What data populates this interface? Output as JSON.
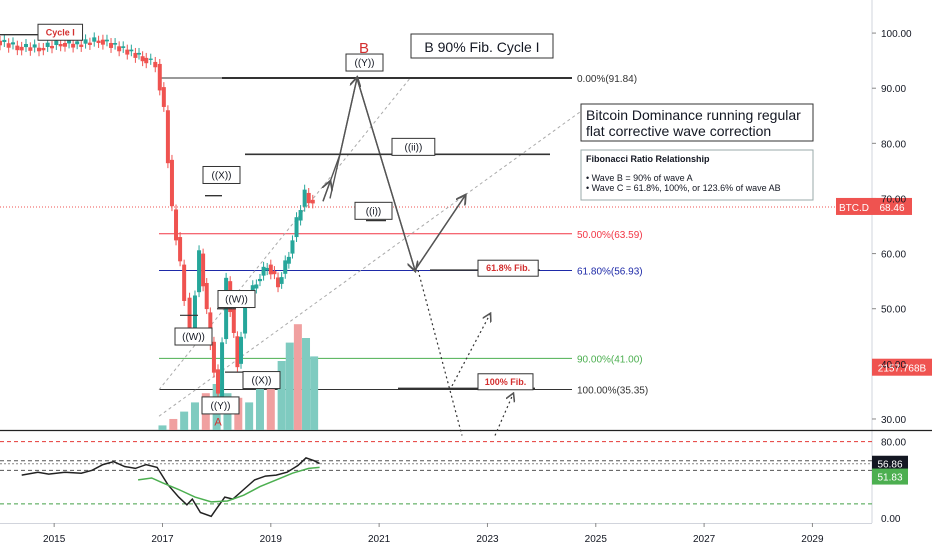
{
  "chart_data": [
    {
      "type": "candlestick",
      "ylim": [
        28,
        106
      ],
      "y_ticks": [
        "100.00",
        "90.00",
        "80.00",
        "70.00",
        "60.00",
        "50.00",
        "40.00",
        "30.00"
      ],
      "x_ticks": [
        "2015",
        "2017",
        "2019",
        "2021",
        "2023",
        "2025",
        "2027",
        "2029"
      ],
      "xlim": [
        2014.0,
        2030.1
      ],
      "grid": false,
      "price_tag": {
        "label": "BTC.D",
        "value": "68.46",
        "color": "#ef5350"
      },
      "volume_tag": {
        "value": "2157.768B",
        "color": "#ef5350"
      },
      "fib_levels": [
        {
          "label": "0.00%(91.84)",
          "value": 91.84,
          "color": "#333333"
        },
        {
          "label": "50.00%(63.59)",
          "value": 63.59,
          "color": "#f23645"
        },
        {
          "label": "61.80%(56.93)",
          "value": 56.93,
          "color": "#1e2aa8"
        },
        {
          "label": "90.00%(41.00)",
          "value": 41.0,
          "color": "#4caf50"
        },
        {
          "label": "100.00%(35.35)",
          "value": 35.35,
          "color": "#333333"
        }
      ],
      "price_path": [
        [
          2014.0,
          98.6
        ],
        [
          2014.4,
          97.5
        ],
        [
          2014.8,
          97.3
        ],
        [
          2015.2,
          98.2
        ],
        [
          2015.5,
          97.9
        ],
        [
          2015.9,
          98.8
        ],
        [
          2016.2,
          97.6
        ],
        [
          2016.5,
          96.4
        ],
        [
          2016.7,
          95.5
        ],
        [
          2016.95,
          94.4
        ],
        [
          2017.1,
          86.0
        ],
        [
          2017.25,
          68.0
        ],
        [
          2017.4,
          58.0
        ],
        [
          2017.6,
          46.0
        ],
        [
          2017.75,
          60.0
        ],
        [
          2017.95,
          44.0
        ],
        [
          2018.1,
          34.0
        ],
        [
          2018.25,
          55.0
        ],
        [
          2018.45,
          40.0
        ],
        [
          2018.6,
          51.0
        ],
        [
          2018.8,
          55.0
        ],
        [
          2019.0,
          58.0
        ],
        [
          2019.2,
          54.5
        ],
        [
          2019.4,
          60.0
        ],
        [
          2019.55,
          66.0
        ],
        [
          2019.7,
          71.0
        ],
        [
          2019.85,
          68.5
        ]
      ],
      "volume_bars": [
        [
          2017.0,
          0.5
        ],
        [
          2017.2,
          1.2
        ],
        [
          2017.4,
          2.0
        ],
        [
          2017.6,
          3.0
        ],
        [
          2017.8,
          4.0
        ],
        [
          2018.0,
          5.0
        ],
        [
          2018.2,
          4.0
        ],
        [
          2018.4,
          3.5
        ],
        [
          2018.6,
          3.0
        ],
        [
          2018.8,
          4.5
        ],
        [
          2019.0,
          5.5
        ],
        [
          2019.2,
          7.5
        ],
        [
          2019.35,
          9.5
        ],
        [
          2019.5,
          11.5
        ],
        [
          2019.65,
          10.0
        ],
        [
          2019.8,
          8.0
        ]
      ]
    },
    {
      "type": "line",
      "ylim": [
        -5,
        90
      ],
      "y_ticks": [
        "80.00",
        "0.00"
      ],
      "value_tags": [
        {
          "value": "56.86",
          "color": "#131722"
        },
        {
          "value": "51.83",
          "color": "#4caf50"
        }
      ],
      "reference_lines": [
        80,
        60,
        50,
        15
      ],
      "series": [
        {
          "color": "#222222",
          "points": [
            [
              2014.4,
              45
            ],
            [
              2014.7,
              48
            ],
            [
              2014.9,
              46
            ],
            [
              2015.2,
              48
            ],
            [
              2015.5,
              47
            ],
            [
              2015.7,
              50
            ],
            [
              2015.9,
              56
            ],
            [
              2016.1,
              59
            ],
            [
              2016.3,
              54
            ],
            [
              2016.5,
              52
            ],
            [
              2016.7,
              56
            ],
            [
              2016.9,
              53
            ],
            [
              2017.1,
              35
            ],
            [
              2017.3,
              22
            ],
            [
              2017.45,
              14
            ],
            [
              2017.55,
              20
            ],
            [
              2017.7,
              6
            ],
            [
              2017.9,
              2
            ],
            [
              2018.0,
              10
            ],
            [
              2018.15,
              22
            ],
            [
              2018.3,
              20
            ],
            [
              2018.5,
              30
            ],
            [
              2018.7,
              40
            ],
            [
              2018.9,
              44
            ],
            [
              2019.1,
              45
            ],
            [
              2019.3,
              48
            ],
            [
              2019.5,
              55
            ],
            [
              2019.65,
              63
            ],
            [
              2019.8,
              60
            ],
            [
              2019.9,
              57
            ]
          ]
        },
        {
          "color": "#4caf50",
          "points": [
            [
              2016.55,
              40
            ],
            [
              2016.8,
              42
            ],
            [
              2017.0,
              37
            ],
            [
              2017.3,
              30
            ],
            [
              2017.6,
              22
            ],
            [
              2017.9,
              17
            ],
            [
              2018.2,
              18
            ],
            [
              2018.5,
              24
            ],
            [
              2018.8,
              33
            ],
            [
              2019.1,
              40
            ],
            [
              2019.4,
              47
            ],
            [
              2019.7,
              52
            ],
            [
              2019.9,
              53
            ]
          ]
        }
      ]
    }
  ],
  "annotations": {
    "cycle_tag": "Cycle I",
    "wave_B": "B",
    "title_box": "B 90%  Fib. Cycle I",
    "wave_labels": [
      "((Y))",
      "((ii))",
      "((i))",
      "((X))",
      "((W))",
      "((W))",
      "((X))",
      "((Y))",
      "A"
    ],
    "note_box": [
      "Bitcoin Dominance running regular",
      "flat corrective wave correction"
    ],
    "fib_box": {
      "title": "Fibonacci Ratio Relationship",
      "lines": [
        "• Wave B = 90% of wave A",
        "• Wave C = 61.8%, 100%, or 123.6% of wave AB"
      ]
    },
    "fib_tags": [
      "61.8% Fib.",
      "100% Fib."
    ]
  }
}
